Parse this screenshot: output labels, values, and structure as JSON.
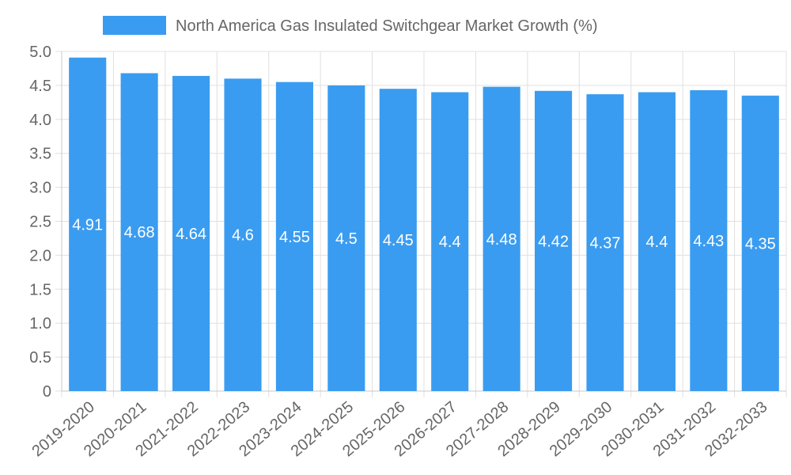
{
  "chart_data": {
    "type": "bar",
    "categories": [
      "2019-2020",
      "2020-2021",
      "2021-2022",
      "2022-2023",
      "2023-2024",
      "2024-2025",
      "2025-2026",
      "2026-2027",
      "2027-2028",
      "2028-2029",
      "2029-2030",
      "2030-2031",
      "2031-2032",
      "2032-2033"
    ],
    "series": [
      {
        "name": "North America Gas Insulated Switchgear Market Growth (%)",
        "values": [
          4.91,
          4.68,
          4.64,
          4.6,
          4.55,
          4.5,
          4.45,
          4.4,
          4.48,
          4.42,
          4.37,
          4.4,
          4.43,
          4.35
        ]
      }
    ],
    "y_ticks": [
      "0",
      "0.5",
      "1.0",
      "1.5",
      "2.0",
      "2.5",
      "3.0",
      "3.5",
      "4.0",
      "4.5",
      "5.0"
    ],
    "ylim": [
      0,
      5
    ],
    "grid": true,
    "legend_position": "top-center",
    "bar_color": "#3a9cf0",
    "grid_color": "#e0e0e0",
    "axis_color": "#c8c8c8"
  }
}
